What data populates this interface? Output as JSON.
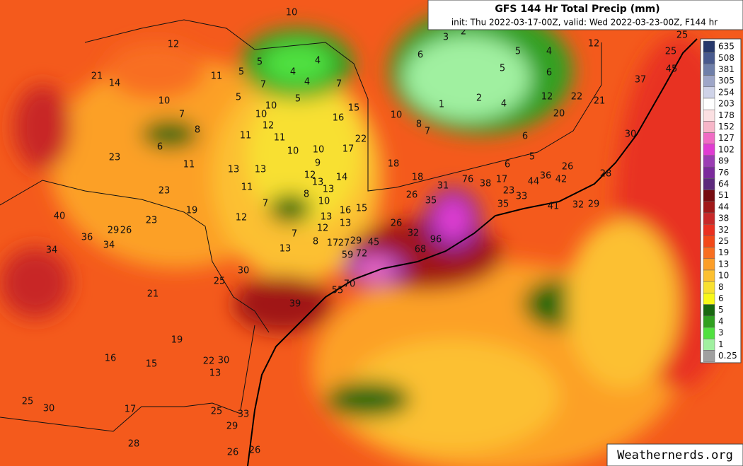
{
  "header": {
    "title": "GFS 144 Hr Total Precip (mm)",
    "subtitle": "init: Thu 2022-03-17-00Z, valid: Wed 2022-03-23-00Z, F144 hr"
  },
  "legend": {
    "items": [
      {
        "label": "635",
        "color": "#27386b"
      },
      {
        "label": "508",
        "color": "#495a8e"
      },
      {
        "label": "381",
        "color": "#6f7fa9"
      },
      {
        "label": "305",
        "color": "#9ea6c8"
      },
      {
        "label": "254",
        "color": "#cfd3e8"
      },
      {
        "label": "203",
        "color": "#ffffff"
      },
      {
        "label": "178",
        "color": "#fbe0e2"
      },
      {
        "label": "152",
        "color": "#f7b6c8"
      },
      {
        "label": "127",
        "color": "#f06cc4"
      },
      {
        "label": "102",
        "color": "#e03cd2"
      },
      {
        "label": "89",
        "color": "#9b3db3"
      },
      {
        "label": "76",
        "color": "#7b2a9c"
      },
      {
        "label": "64",
        "color": "#5c2a7c"
      },
      {
        "label": "51",
        "color": "#760c10"
      },
      {
        "label": "44",
        "color": "#a01818"
      },
      {
        "label": "38",
        "color": "#c82828"
      },
      {
        "label": "32",
        "color": "#ea3020"
      },
      {
        "label": "25",
        "color": "#f24818"
      },
      {
        "label": "19",
        "color": "#f86e20"
      },
      {
        "label": "13",
        "color": "#fc9e28"
      },
      {
        "label": "10",
        "color": "#fcc030"
      },
      {
        "label": "8",
        "color": "#f8e030"
      },
      {
        "label": "6",
        "color": "#f8f818"
      },
      {
        "label": "5",
        "color": "#186810"
      },
      {
        "label": "4",
        "color": "#30a020"
      },
      {
        "label": "3",
        "color": "#50e040"
      },
      {
        "label": "1",
        "color": "#a0f0a0"
      },
      {
        "label": "0.25",
        "color": "#a0a0a0"
      }
    ]
  },
  "map_labels": [
    "10",
    "12",
    "21",
    "14",
    "11",
    "5",
    "5",
    "4",
    "4",
    "4",
    "5",
    "7",
    "7",
    "5",
    "10",
    "7",
    "8",
    "6",
    "10",
    "10",
    "12",
    "11",
    "11",
    "10",
    "10",
    "9",
    "11",
    "23",
    "13",
    "13",
    "12",
    "11",
    "13",
    "13",
    "8",
    "14",
    "15",
    "16",
    "22",
    "17",
    "18",
    "18",
    "23",
    "19",
    "7",
    "12",
    "10",
    "16",
    "15",
    "13",
    "13",
    "12",
    "7",
    "8",
    "17",
    "27",
    "29",
    "45",
    "13",
    "59",
    "72",
    "26",
    "32",
    "35",
    "26",
    "31",
    "76",
    "38",
    "17",
    "23",
    "33",
    "44",
    "36",
    "42",
    "26",
    "35",
    "41",
    "32",
    "29",
    "28",
    "96",
    "68",
    "30",
    "25",
    "55",
    "70",
    "39",
    "40",
    "36",
    "29",
    "26",
    "23",
    "34",
    "34",
    "21",
    "19",
    "16",
    "15",
    "22",
    "30",
    "13",
    "25",
    "30",
    "17",
    "25",
    "33",
    "29",
    "28",
    "26",
    "26",
    "2",
    "3",
    "6",
    "5",
    "4",
    "5",
    "6",
    "2",
    "1",
    "4",
    "12",
    "12",
    "22",
    "21",
    "20",
    "6",
    "6",
    "5",
    "37",
    "30",
    "25",
    "25",
    "45",
    "10",
    "8",
    "7"
  ],
  "watermark": "Weathernerds.org"
}
